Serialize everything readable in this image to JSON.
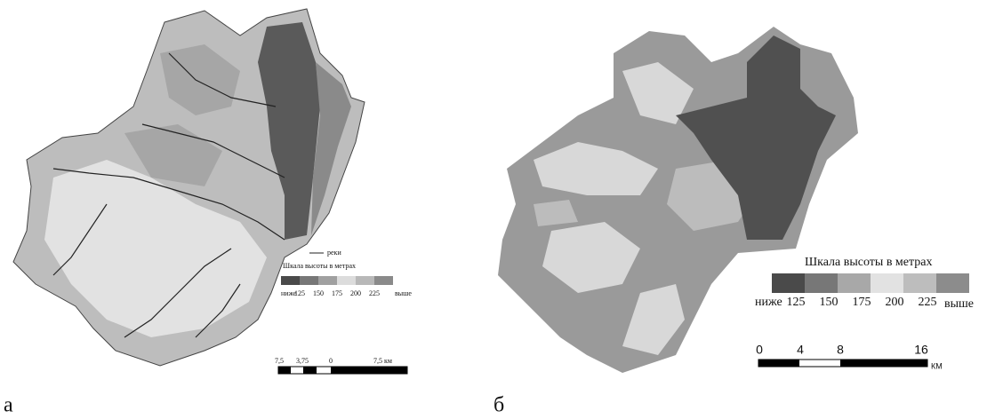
{
  "panels": [
    {
      "label": "а",
      "river_label": "реки",
      "legend_title": "Шкала высоты в метрах",
      "legend_labels": [
        "ниже",
        "125",
        "150",
        "175",
        "200",
        "225",
        "выше"
      ],
      "scale_labels": [
        "7,5",
        "3,75",
        "0",
        "7,5 км"
      ]
    },
    {
      "label": "б",
      "legend_title": "Шкала высоты в метрах",
      "legend_labels": [
        "ниже",
        "125",
        "150",
        "175",
        "200",
        "225",
        "выше"
      ],
      "scale_labels": [
        "0",
        "4",
        "8",
        "16"
      ],
      "scale_unit": "КМ"
    }
  ]
}
